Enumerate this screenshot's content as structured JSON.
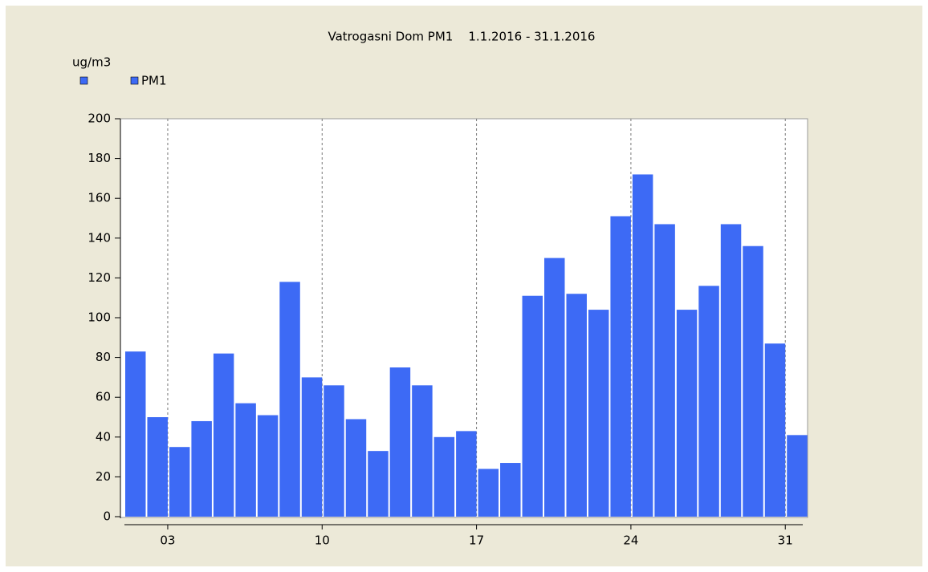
{
  "chart_data": {
    "type": "bar",
    "title": "Vatrogasni Dom PM1    1.1.2016 - 31.1.2016",
    "y_label": "ug/m3",
    "categories": [
      null,
      null,
      "03",
      null,
      null,
      null,
      null,
      null,
      null,
      "10",
      null,
      null,
      null,
      null,
      null,
      null,
      "17",
      null,
      null,
      null,
      null,
      null,
      null,
      "24",
      null,
      null,
      null,
      null,
      null,
      null,
      "31"
    ],
    "series": [
      {
        "name": "PM1",
        "color": "#3d6af5",
        "values": [
          83,
          50,
          35,
          48,
          82,
          57,
          51,
          118,
          70,
          66,
          49,
          33,
          75,
          66,
          40,
          43,
          24,
          27,
          111,
          130,
          112,
          104,
          151,
          172,
          147,
          104,
          116,
          147,
          136,
          87,
          41
        ]
      }
    ],
    "ylim": [
      0,
      200
    ],
    "yticks": [
      0,
      20,
      40,
      60,
      80,
      100,
      120,
      140,
      160,
      180,
      200
    ],
    "grid": true
  }
}
